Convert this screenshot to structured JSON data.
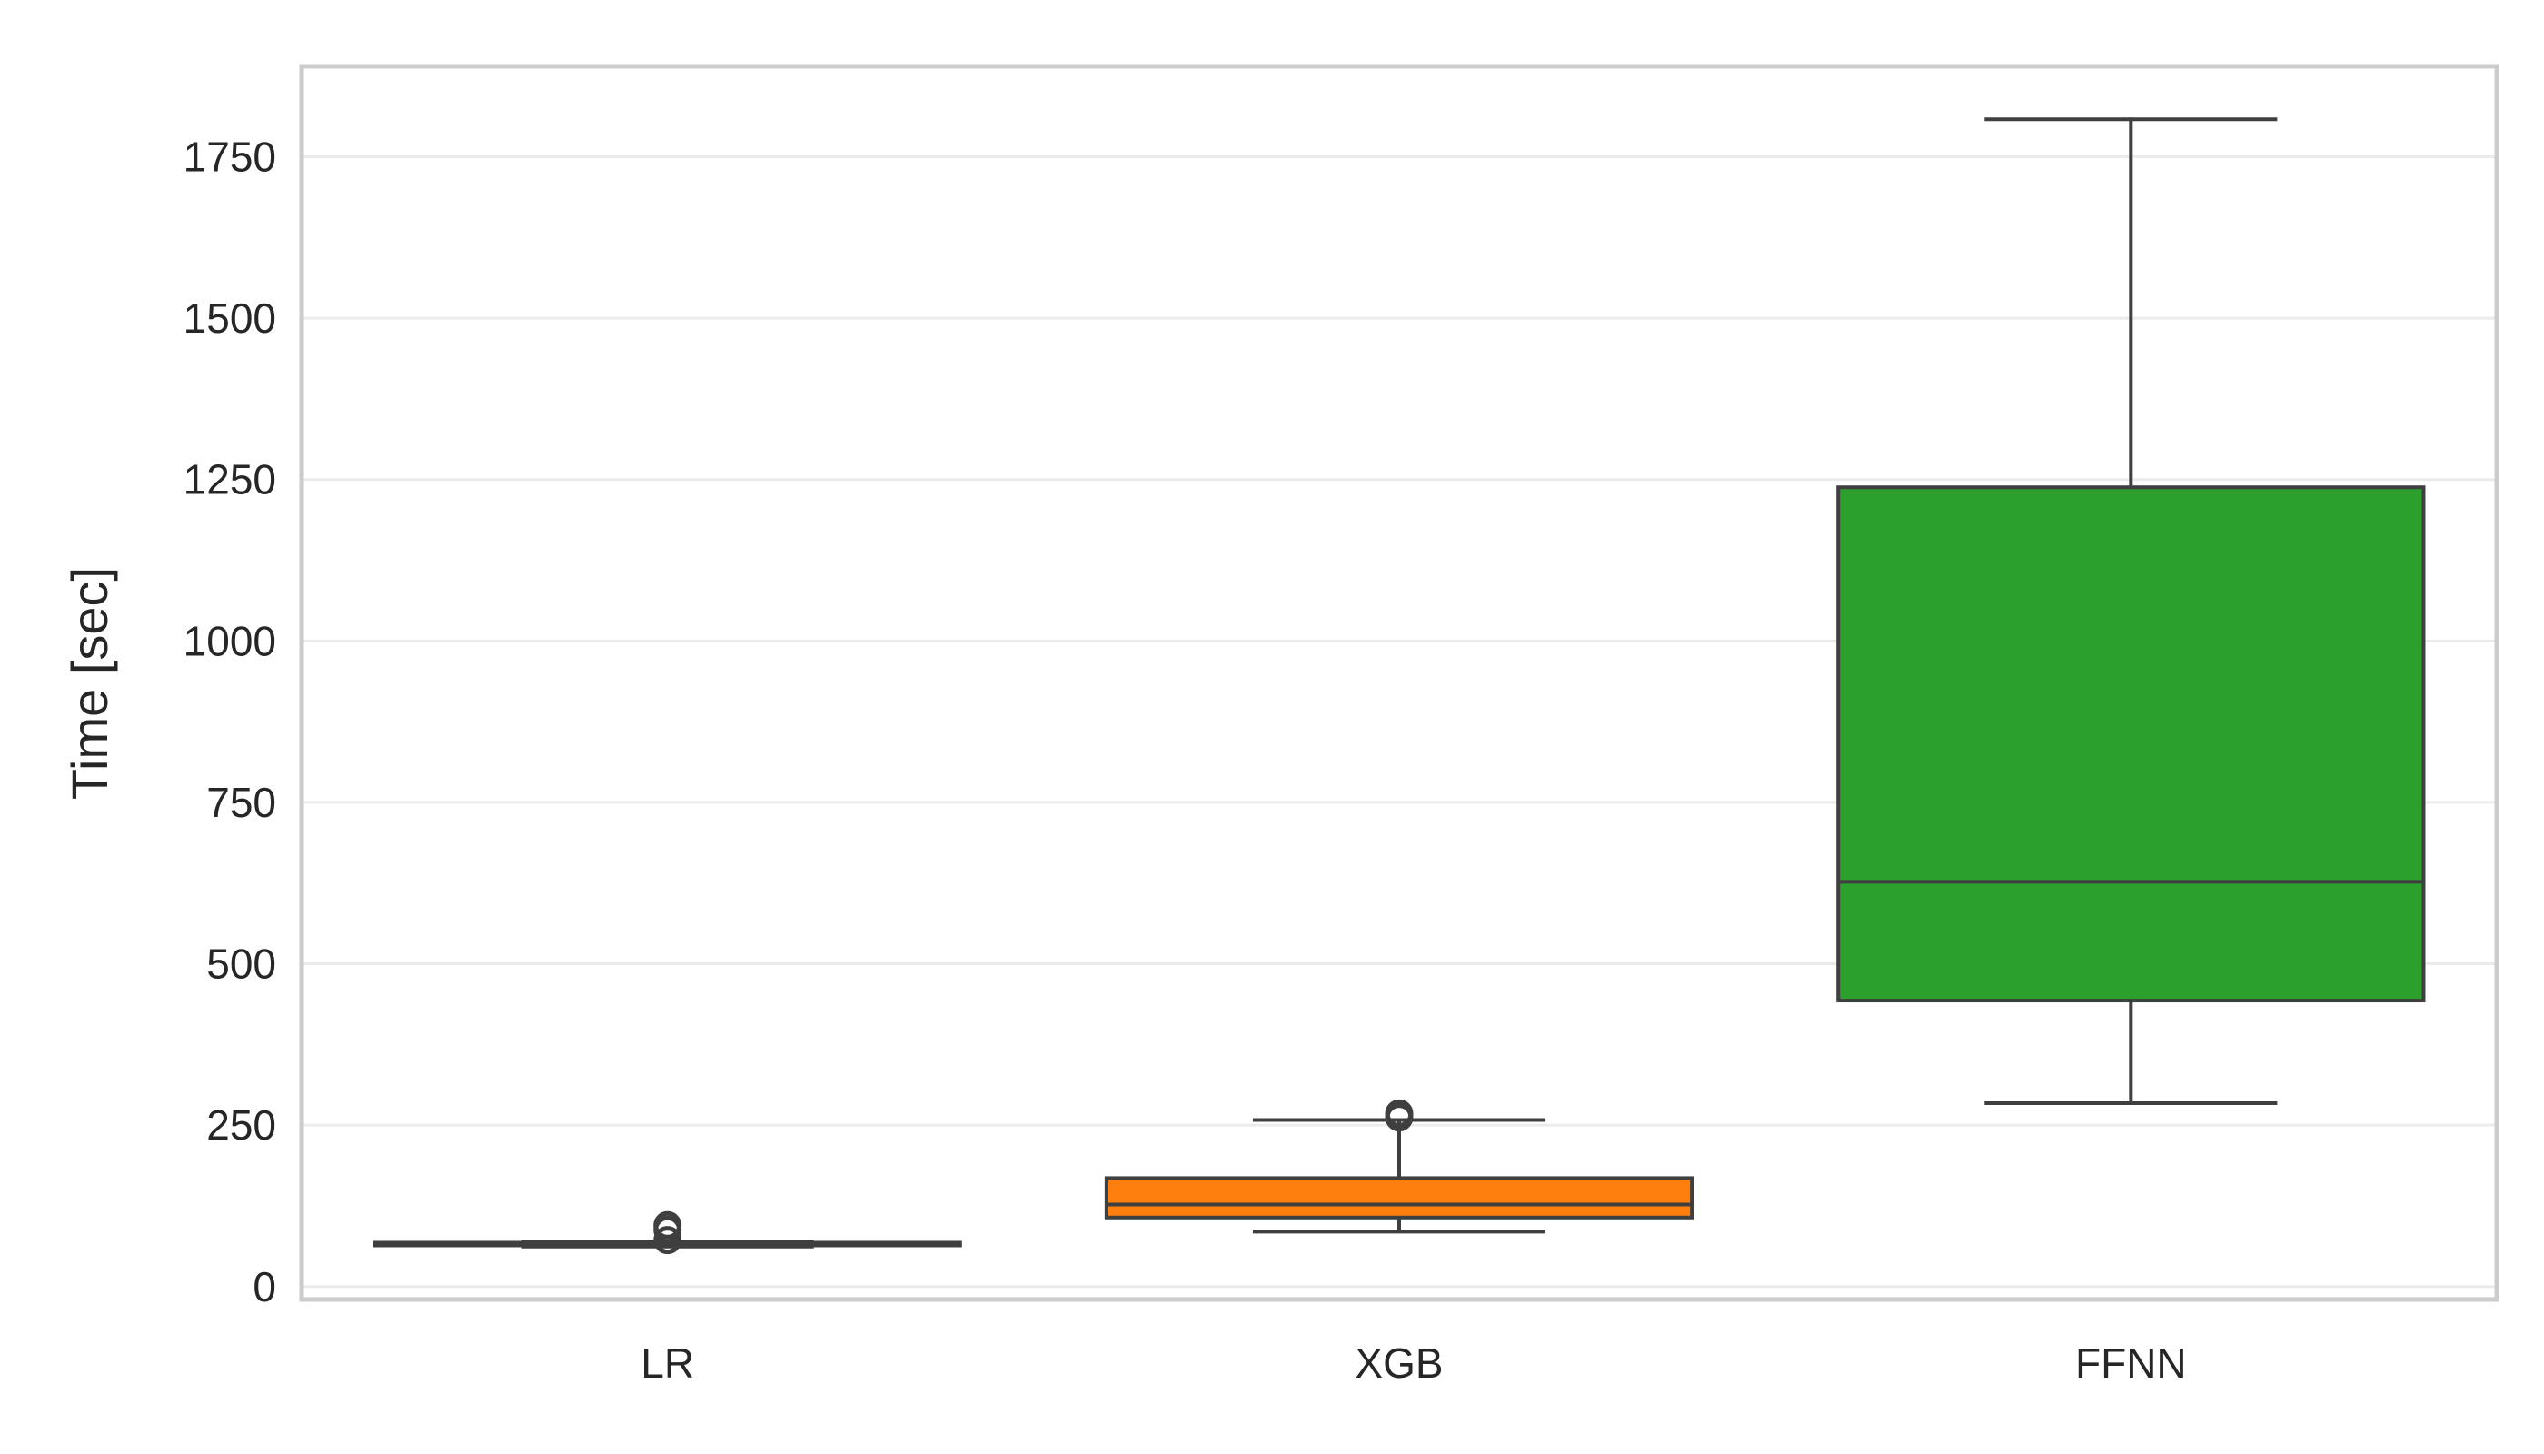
{
  "chart_data": {
    "type": "box",
    "title": "",
    "xlabel": "",
    "ylabel": "Time [sec]",
    "ylim": [
      -20,
      1890
    ],
    "yticks": [
      0,
      250,
      500,
      750,
      1000,
      1250,
      1500,
      1750
    ],
    "grid": "horizontal",
    "categories": [
      "LR",
      "XGB",
      "FFNN"
    ],
    "boxes": [
      {
        "category": "LR",
        "whisker_low": 62,
        "q1": 64,
        "median": 66,
        "q3": 68,
        "whisker_high": 70,
        "outliers": [
          72,
          88,
          95
        ],
        "color": "#1f77b4"
      },
      {
        "category": "XGB",
        "whisker_low": 85,
        "q1": 107,
        "median": 127,
        "q3": 168,
        "whisker_high": 258,
        "outliers": [
          262,
          268
        ],
        "color": "#ff7f0e"
      },
      {
        "category": "FFNN",
        "whisker_low": 284,
        "q1": 443,
        "median": 627,
        "q3": 1238,
        "whisker_high": 1808,
        "outliers": [],
        "color": "#2ca02c"
      }
    ],
    "colors": {
      "frame": "#cccccc",
      "grid": "#ebebeb",
      "line": "#3f3f3f",
      "text": "#262626"
    }
  }
}
